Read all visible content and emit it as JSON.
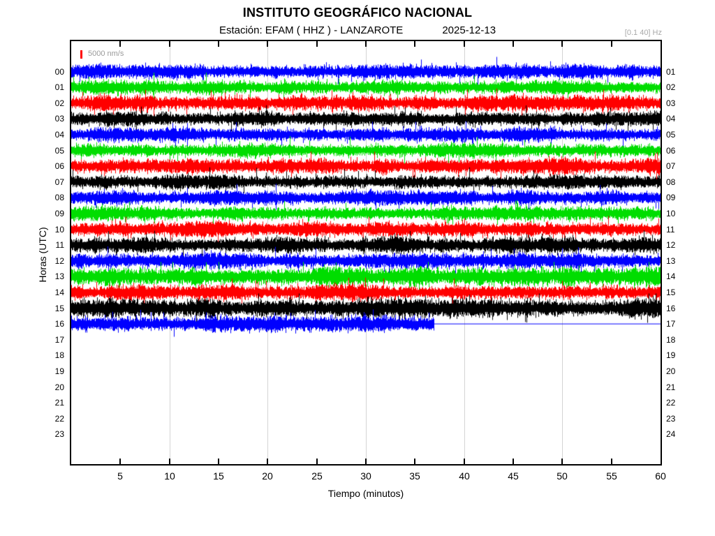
{
  "header": {
    "title": "INSTITUTO GEOGRÁFICO NACIONAL",
    "station_line": "Estación:  EFAM ( HHZ ) - LANZAROTE",
    "date": "2025-12-13",
    "filter_label": "[0.1 40] Hz"
  },
  "chart_data": {
    "type": "helicorder",
    "title": "INSTITUTO GEOGRÁFICO NACIONAL",
    "station": "EFAM",
    "channel": "HHZ",
    "location": "LANZAROTE",
    "date": "2025-12-13",
    "filter_band_hz": [
      0.1,
      40
    ],
    "legend": {
      "marker_color": "#ff0000",
      "label": "5000 nm/s"
    },
    "xlabel": "Tiempo (minutos)",
    "ylabel": "Horas (UTC)",
    "x_range_minutes": [
      0,
      60
    ],
    "x_tick_minutes": [
      5,
      10,
      15,
      20,
      25,
      30,
      35,
      40,
      45,
      50,
      55,
      60
    ],
    "x_tick_labels": [
      "5",
      "10",
      "15",
      "20",
      "25",
      "30",
      "35",
      "40",
      "45",
      "50",
      "55",
      "60"
    ],
    "gridline_minutes": [
      10,
      20,
      30,
      40,
      50
    ],
    "rows_per_day": 24,
    "left_hour_labels": [
      "00",
      "01",
      "02",
      "03",
      "04",
      "05",
      "06",
      "07",
      "08",
      "09",
      "10",
      "11",
      "12",
      "13",
      "14",
      "15",
      "16",
      "17",
      "18",
      "19",
      "20",
      "21",
      "22",
      "23"
    ],
    "right_hour_labels": [
      "01",
      "02",
      "03",
      "04",
      "05",
      "06",
      "07",
      "08",
      "09",
      "10",
      "11",
      "12",
      "13",
      "14",
      "15",
      "16",
      "17",
      "18",
      "19",
      "20",
      "21",
      "22",
      "23",
      "24"
    ],
    "color_cycle": [
      "#0000ff",
      "#00dd00",
      "#ff0000",
      "#000000"
    ],
    "traces": [
      {
        "hour_utc": "00",
        "row": 0,
        "color": "#0000ff",
        "start_min": 0,
        "end_min": 60,
        "amplitude": 9
      },
      {
        "hour_utc": "01",
        "row": 1,
        "color": "#00dd00",
        "start_min": 0,
        "end_min": 60,
        "amplitude": 9
      },
      {
        "hour_utc": "02",
        "row": 2,
        "color": "#ff0000",
        "start_min": 0,
        "end_min": 60,
        "amplitude": 10
      },
      {
        "hour_utc": "03",
        "row": 3,
        "color": "#000000",
        "start_min": 0,
        "end_min": 60,
        "amplitude": 9
      },
      {
        "hour_utc": "04",
        "row": 4,
        "color": "#0000ff",
        "start_min": 0,
        "end_min": 60,
        "amplitude": 9
      },
      {
        "hour_utc": "05",
        "row": 5,
        "color": "#00dd00",
        "start_min": 0,
        "end_min": 60,
        "amplitude": 9
      },
      {
        "hour_utc": "06",
        "row": 6,
        "color": "#ff0000",
        "start_min": 0,
        "end_min": 60,
        "amplitude": 10
      },
      {
        "hour_utc": "07",
        "row": 7,
        "color": "#000000",
        "start_min": 0,
        "end_min": 60,
        "amplitude": 9
      },
      {
        "hour_utc": "08",
        "row": 8,
        "color": "#0000ff",
        "start_min": 0,
        "end_min": 60,
        "amplitude": 9
      },
      {
        "hour_utc": "09",
        "row": 9,
        "color": "#00dd00",
        "start_min": 0,
        "end_min": 60,
        "amplitude": 9
      },
      {
        "hour_utc": "10",
        "row": 10,
        "color": "#ff0000",
        "start_min": 0,
        "end_min": 60,
        "amplitude": 10
      },
      {
        "hour_utc": "11",
        "row": 11,
        "color": "#000000",
        "start_min": 0,
        "end_min": 60,
        "amplitude": 10
      },
      {
        "hour_utc": "12",
        "row": 12,
        "color": "#0000ff",
        "start_min": 0,
        "end_min": 60,
        "amplitude": 10
      },
      {
        "hour_utc": "13",
        "row": 13,
        "color": "#00dd00",
        "start_min": 0,
        "end_min": 60,
        "amplitude": 12
      },
      {
        "hour_utc": "14",
        "row": 14,
        "color": "#ff0000",
        "start_min": 0,
        "end_min": 60,
        "amplitude": 10
      },
      {
        "hour_utc": "15",
        "row": 15,
        "color": "#000000",
        "start_min": 0,
        "end_min": 60,
        "amplitude": 12
      },
      {
        "hour_utc": "16",
        "row": 16,
        "color": "#0000ff",
        "start_min": 0,
        "end_min": 37,
        "amplitude": 11,
        "flat_line_to_min": 60
      }
    ],
    "empty_hours": [
      "17",
      "18",
      "19",
      "20",
      "21",
      "22",
      "23"
    ]
  }
}
